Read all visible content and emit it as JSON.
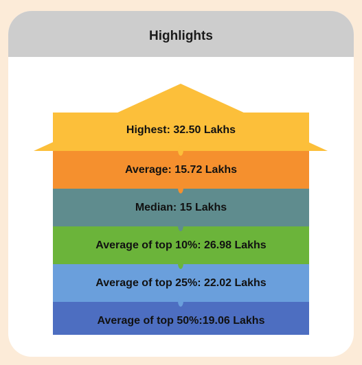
{
  "header": {
    "title": "Highlights"
  },
  "levels": [
    {
      "label": "Highest: 32.50 Lakhs",
      "color": "#fcbf3a"
    },
    {
      "label": "Average: 15.72 Lakhs",
      "color": "#f5902e"
    },
    {
      "label": "Median: 15 Lakhs",
      "color": "#5f8c8e"
    },
    {
      "label": "Average of top 10%: 26.98 Lakhs",
      "color": "#6bb43a"
    },
    {
      "label": "Average of top 25%: 22.02 Lakhs",
      "color": "#6a9fdc"
    },
    {
      "label": "Average of top 50%:19.06 Lakhs",
      "color": "#4d6ec1"
    }
  ]
}
